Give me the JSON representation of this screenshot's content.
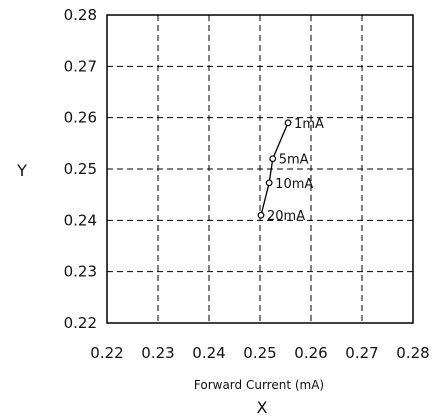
{
  "chart_data": {
    "type": "scatter",
    "title": "",
    "xlabel": "Forward Current (mA)",
    "xlabel_sub": "X",
    "ylabel": "Y",
    "xlim": [
      0.22,
      0.28
    ],
    "ylim": [
      0.22,
      0.28
    ],
    "xticks": [
      "0.22",
      "0.23",
      "0.24",
      "0.25",
      "0.26",
      "0.27",
      "0.28"
    ],
    "yticks": [
      "0.22",
      "0.23",
      "0.24",
      "0.25",
      "0.26",
      "0.27",
      "0.28"
    ],
    "grid": true,
    "grid_style": "dashed",
    "legend": "none",
    "series": [
      {
        "points": [
          {
            "label": "1mA",
            "x": 0.2555,
            "y": 0.259
          },
          {
            "label": "5mA",
            "x": 0.2525,
            "y": 0.252
          },
          {
            "label": "10mA",
            "x": 0.2518,
            "y": 0.2473
          },
          {
            "label": "20mA",
            "x": 0.2502,
            "y": 0.241
          }
        ],
        "connected": true
      }
    ],
    "colors": {
      "axis": "#000000",
      "grid": "#000000",
      "series": "#000000"
    }
  }
}
